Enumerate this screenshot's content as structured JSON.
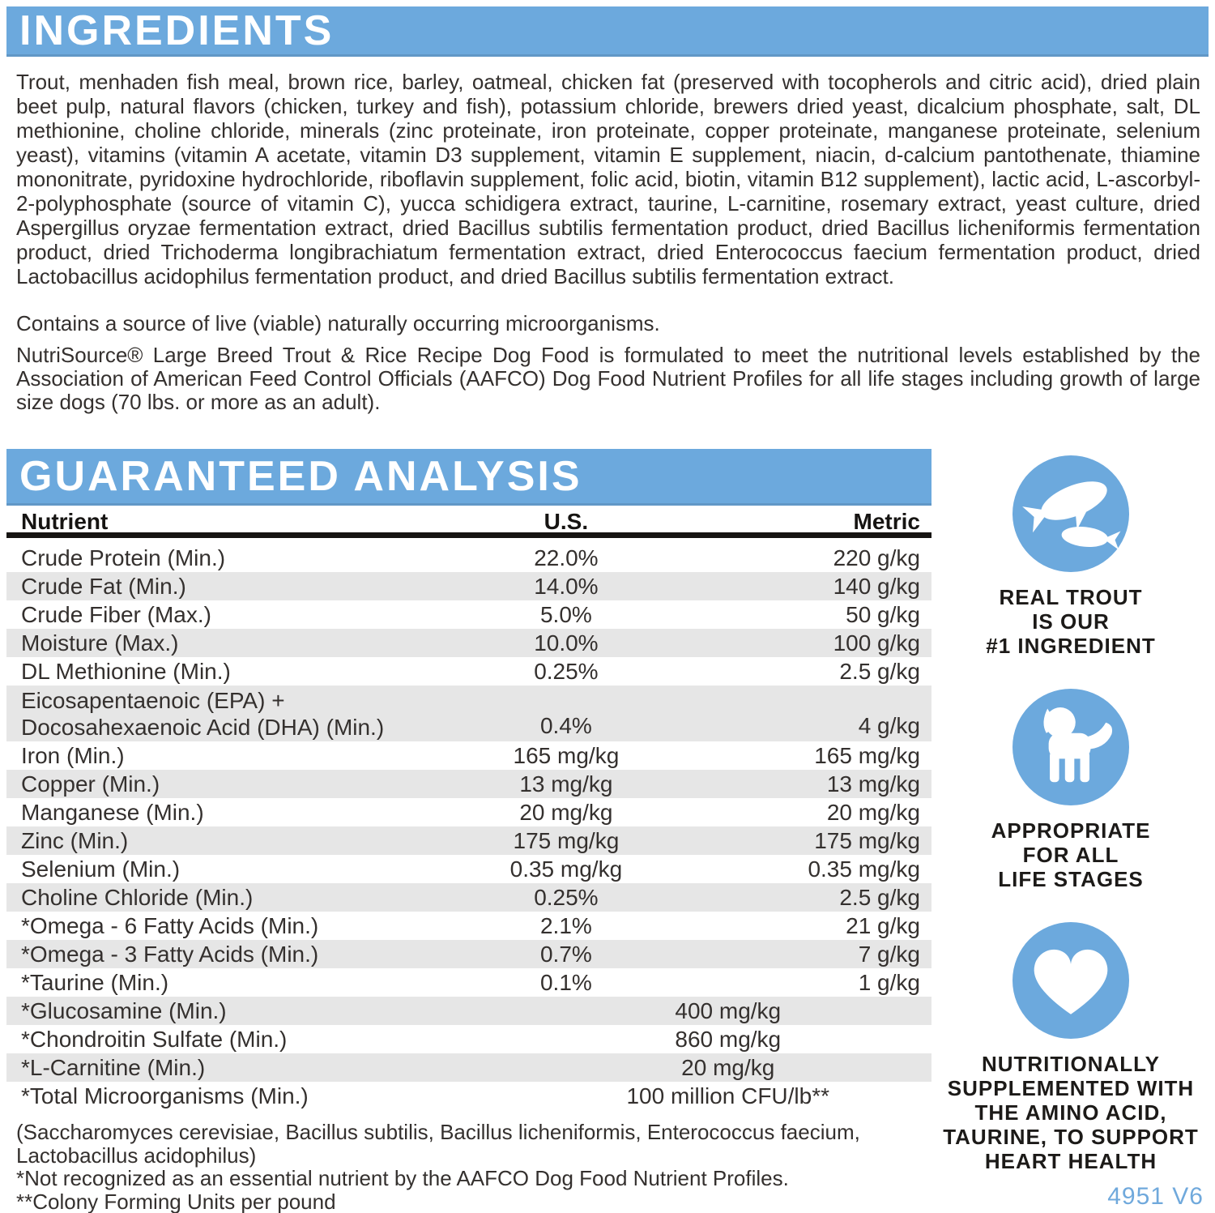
{
  "colors": {
    "accent_blue": "#6CA9DD",
    "row_gray": "#E6E6E6",
    "text": "#34302E",
    "code_blue": "#70A9DC"
  },
  "ingredients": {
    "title": "INGREDIENTS",
    "paragraph": "Trout, menhaden fish meal, brown rice, barley, oatmeal, chicken fat (preserved with tocopherols and citric acid), dried plain beet pulp, natural flavors (chicken, turkey and fish), potassium chloride, brewers dried yeast, dicalcium phosphate, salt, DL methionine, choline chloride, minerals (zinc proteinate, iron proteinate, copper proteinate, manganese proteinate, selenium yeast), vitamins (vitamin A acetate, vitamin D3 supplement, vitamin E supplement, niacin, d-calcium pantothenate, thiamine mononitrate, pyridoxine hydrochloride, riboflavin supplement, folic acid, biotin, vitamin B12 supplement), lactic acid, L-ascorbyl-2-polyphosphate (source of vitamin C), yucca schidigera extract, taurine, L-carnitine, rosemary extract, yeast culture, dried Aspergillus oryzae fermentation extract, dried Bacillus subtilis fermentation product, dried Bacillus licheniformis fermentation product, dried Trichoderma longibrachiatum fermentation extract, dried Enterococcus faecium fermentation product, dried Lactobacillus acidophilus fermentation product, and dried Bacillus subtilis fermentation extract.",
    "contains_note": "Contains a source of live (viable) naturally occurring microorganisms.",
    "aafco_statement": "NutriSource® Large Breed Trout & Rice Recipe Dog Food is formulated to meet the nutritional levels established by the Association of American Feed Control Officials (AAFCO) Dog Food Nutrient Profiles for all life stages including growth of large size dogs (70 lbs. or more as an adult)."
  },
  "analysis": {
    "title": "GUARANTEED ANALYSIS",
    "columns": [
      "Nutrient",
      "U.S.",
      "Metric"
    ],
    "rows": [
      {
        "nutrient": "Crude Protein (Min.)",
        "us": "22.0%",
        "metric": "220 g/kg"
      },
      {
        "nutrient": "Crude Fat (Min.)",
        "us": "14.0%",
        "metric": "140 g/kg"
      },
      {
        "nutrient": "Crude Fiber (Max.)",
        "us": "5.0%",
        "metric": "50 g/kg"
      },
      {
        "nutrient": "Moisture (Max.)",
        "us": "10.0%",
        "metric": "100 g/kg"
      },
      {
        "nutrient": "DL Methionine (Min.)",
        "us": "0.25%",
        "metric": "2.5 g/kg"
      },
      {
        "nutrient": "Eicosapentaenoic (EPA) +",
        "nutrient2": "Docosahexaenoic Acid (DHA) (Min.)",
        "us": "0.4%",
        "metric": "4 g/kg"
      },
      {
        "nutrient": "Iron (Min.)",
        "us": "165 mg/kg",
        "metric": "165 mg/kg"
      },
      {
        "nutrient": "Copper (Min.)",
        "us": "13 mg/kg",
        "metric": "13 mg/kg"
      },
      {
        "nutrient": "Manganese (Min.)",
        "us": "20 mg/kg",
        "metric": "20 mg/kg"
      },
      {
        "nutrient": "Zinc (Min.)",
        "us": "175 mg/kg",
        "metric": "175 mg/kg"
      },
      {
        "nutrient": "Selenium (Min.)",
        "us": "0.35 mg/kg",
        "metric": "0.35 mg/kg"
      },
      {
        "nutrient": "Choline Chloride (Min.)",
        "us": "0.25%",
        "metric": "2.5 g/kg"
      },
      {
        "nutrient": "*Omega - 6 Fatty Acids (Min.)",
        "us": "2.1%",
        "metric": "21 g/kg"
      },
      {
        "nutrient": "*Omega - 3 Fatty Acids (Min.)",
        "us": "0.7%",
        "metric": "7 g/kg"
      },
      {
        "nutrient": "*Taurine (Min.)",
        "us": "0.1%",
        "metric": "1 g/kg"
      },
      {
        "nutrient": "*Glucosamine (Min.)",
        "value": "400 mg/kg"
      },
      {
        "nutrient": "*Chondroitin Sulfate (Min.)",
        "value": "860 mg/kg"
      },
      {
        "nutrient": "*L-Carnitine (Min.)",
        "value": "20 mg/kg"
      },
      {
        "nutrient": "*Total Microorganisms (Min.)",
        "value": "100 million CFU/lb**"
      }
    ]
  },
  "badges": [
    {
      "icon": "trout-icon",
      "caption": "REAL TROUT\nIS OUR\n#1 INGREDIENT"
    },
    {
      "icon": "puppy-icon",
      "caption": "APPROPRIATE\nFOR ALL\nLIFE STAGES"
    },
    {
      "icon": "heart-icon",
      "caption": "NUTRITIONALLY\nSUPPLEMENTED WITH\nTHE AMINO ACID,\nTAURINE, TO SUPPORT\nHEART HEALTH"
    }
  ],
  "footnotes": [
    "(Saccharomyces cerevisiae, Bacillus subtilis, Bacillus licheniformis, Enterococcus faecium, Lactobacillus acidophilus)",
    "*Not recognized as an essential nutrient by the AAFCO Dog Food Nutrient Profiles.",
    "**Colony Forming Units per pound"
  ],
  "footer_code": "4951 V6"
}
